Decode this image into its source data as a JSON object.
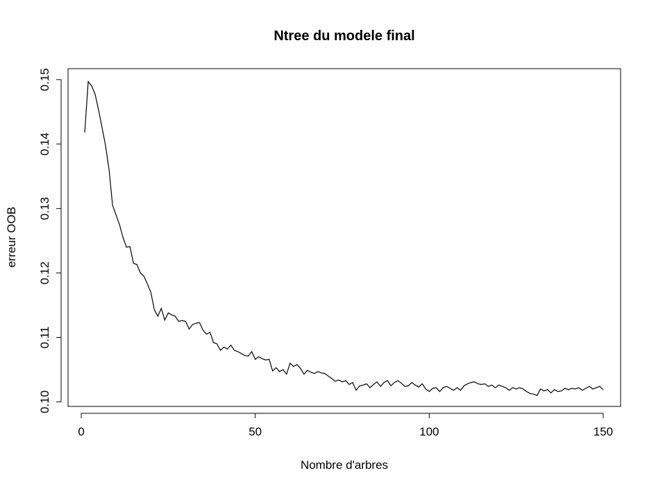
{
  "chart_data": {
    "type": "line",
    "title": "Ntree du modele final",
    "xlabel": "Nombre d'arbres",
    "ylabel": "erreur OOB",
    "xlim": [
      -3.8,
      155
    ],
    "ylim": [
      0.0993,
      0.1517
    ],
    "xticks": [
      0,
      50,
      100,
      150
    ],
    "xtick_labels": [
      "0",
      "50",
      "100",
      "150"
    ],
    "yticks": [
      0.1,
      0.11,
      0.12,
      0.13,
      0.14,
      0.15
    ],
    "ytick_labels": [
      "0.10",
      "0.11",
      "0.12",
      "0.13",
      "0.14",
      "0.15"
    ],
    "grid": false,
    "legend": "none",
    "line_color": "#000000",
    "series": [
      {
        "x": [
          1,
          2,
          3,
          4,
          5,
          6,
          7,
          8,
          9,
          10,
          11,
          12,
          13,
          14,
          15,
          16,
          17,
          18,
          19,
          20,
          21,
          22,
          23,
          24,
          25,
          26,
          27,
          28,
          29,
          30,
          31,
          32,
          33,
          34,
          35,
          36,
          37,
          38,
          39,
          40,
          41,
          42,
          43,
          44,
          45,
          46,
          47,
          48,
          49,
          50,
          51,
          52,
          53,
          54,
          55,
          56,
          57,
          58,
          59,
          60,
          61,
          62,
          63,
          64,
          65,
          66,
          67,
          68,
          69,
          70,
          71,
          72,
          73,
          74,
          75,
          76,
          77,
          78,
          79,
          80,
          81,
          82,
          83,
          84,
          85,
          86,
          87,
          88,
          89,
          90,
          91,
          92,
          93,
          94,
          95,
          96,
          97,
          98,
          99,
          100,
          101,
          102,
          103,
          104,
          105,
          106,
          107,
          108,
          109,
          110,
          111,
          112,
          113,
          114,
          115,
          116,
          117,
          118,
          119,
          120,
          121,
          122,
          123,
          124,
          125,
          126,
          127,
          128,
          129,
          130,
          131,
          132,
          133,
          134,
          135,
          136,
          137,
          138,
          139,
          140,
          141,
          142,
          143,
          144,
          145,
          146,
          147,
          148,
          149,
          150
        ],
        "y": [
          0.1418,
          0.1497,
          0.149,
          0.1477,
          0.1452,
          0.1425,
          0.1397,
          0.136,
          0.1305,
          0.129,
          0.1275,
          0.1255,
          0.124,
          0.1241,
          0.1215,
          0.1213,
          0.12,
          0.1195,
          0.1183,
          0.117,
          0.1143,
          0.1133,
          0.1145,
          0.1127,
          0.1138,
          0.1135,
          0.1133,
          0.1125,
          0.1126,
          0.1125,
          0.1113,
          0.112,
          0.1122,
          0.1123,
          0.1111,
          0.1105,
          0.1108,
          0.1092,
          0.109,
          0.108,
          0.1085,
          0.1082,
          0.1088,
          0.108,
          0.1078,
          0.1075,
          0.1072,
          0.1071,
          0.1078,
          0.1066,
          0.107,
          0.1067,
          0.1065,
          0.1066,
          0.1048,
          0.1053,
          0.1047,
          0.105,
          0.1043,
          0.106,
          0.1055,
          0.1058,
          0.1052,
          0.1043,
          0.1049,
          0.1046,
          0.1044,
          0.1047,
          0.1045,
          0.1044,
          0.104,
          0.1036,
          0.1032,
          0.1034,
          0.1031,
          0.1033,
          0.1027,
          0.103,
          0.1018,
          0.1025,
          0.1026,
          0.1028,
          0.1022,
          0.1027,
          0.1031,
          0.1024,
          0.103,
          0.1033,
          0.1025,
          0.103,
          0.1033,
          0.1029,
          0.1024,
          0.1025,
          0.103,
          0.1026,
          0.1023,
          0.1028,
          0.102,
          0.1016,
          0.1021,
          0.1022,
          0.1016,
          0.1022,
          0.1024,
          0.1021,
          0.1018,
          0.1022,
          0.1018,
          0.1025,
          0.1028,
          0.103,
          0.1031,
          0.1028,
          0.1027,
          0.1028,
          0.1024,
          0.1026,
          0.1022,
          0.1026,
          0.1024,
          0.1022,
          0.1018,
          0.1022,
          0.102,
          0.1022,
          0.102,
          0.1016,
          0.1013,
          0.1012,
          0.101,
          0.102,
          0.1017,
          0.1019,
          0.1014,
          0.1019,
          0.1016,
          0.1017,
          0.1021,
          0.1019,
          0.1021,
          0.102,
          0.1022,
          0.1018,
          0.1021,
          0.1024,
          0.102,
          0.1022,
          0.1024,
          0.1019
        ]
      }
    ]
  }
}
